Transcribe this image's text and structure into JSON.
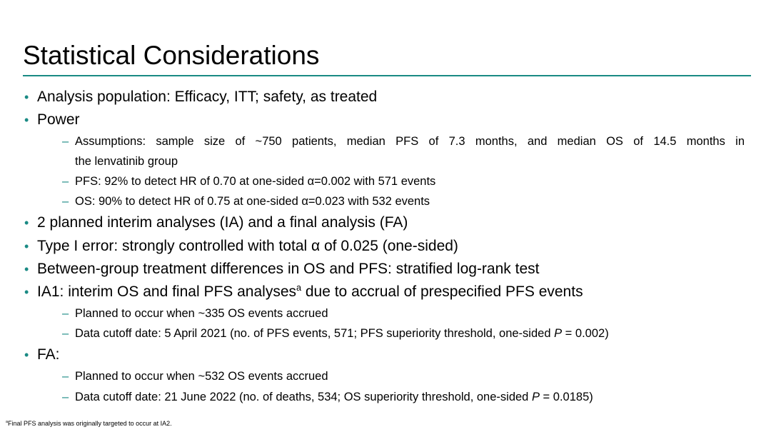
{
  "title": "Statistical Considerations",
  "colors": {
    "accent": "#1a8a84"
  },
  "bullets": {
    "analysis_population": "Analysis population: Efficacy, ITT; safety, as treated",
    "power": "Power",
    "power_assumptions_line1": "Assumptions: sample size of ~750 patients, median PFS of 7.3 months, and median OS of 14.5 months in",
    "power_assumptions_line2": "the lenvatinib group",
    "power_pfs": "PFS: 92% to detect HR of 0.70 at one-sided α=0.002 with 571 events",
    "power_os": "OS: 90% to detect HR of 0.75 at one-sided α=0.023 with 532 events",
    "interim": "2 planned interim analyses (IA) and a final analysis (FA)",
    "type1": "Type I error: strongly controlled with total α of 0.025 (one-sided)",
    "between_group": "Between-group treatment differences in OS and PFS: stratified log-rank test",
    "ia1": "IA1: interim OS and final PFS analyses",
    "ia1_sup": "a",
    "ia1_rest": " due to accrual of prespecified PFS events",
    "ia1_planned": "Planned to occur when ~335 OS events accrued",
    "ia1_cutoff": "Data cutoff date: 5 April 2021 (no. of PFS events, 571; PFS superiority threshold, one-sided ",
    "ia1_cutoff_p": "P",
    "ia1_cutoff_end": " = 0.002)",
    "fa": "FA:",
    "fa_planned": "Planned to occur when ~532 OS events accrued",
    "fa_cutoff": "Data cutoff date: 21 June 2022 (no. of deaths, 534; OS superiority threshold, one-sided ",
    "fa_cutoff_p": "P",
    "fa_cutoff_end": " = 0.0185)"
  },
  "bullet_glyph": "•",
  "dash_glyph": "–",
  "footnote_sup": "a",
  "footnote": "Final PFS analysis was originally targeted to occur at IA2."
}
